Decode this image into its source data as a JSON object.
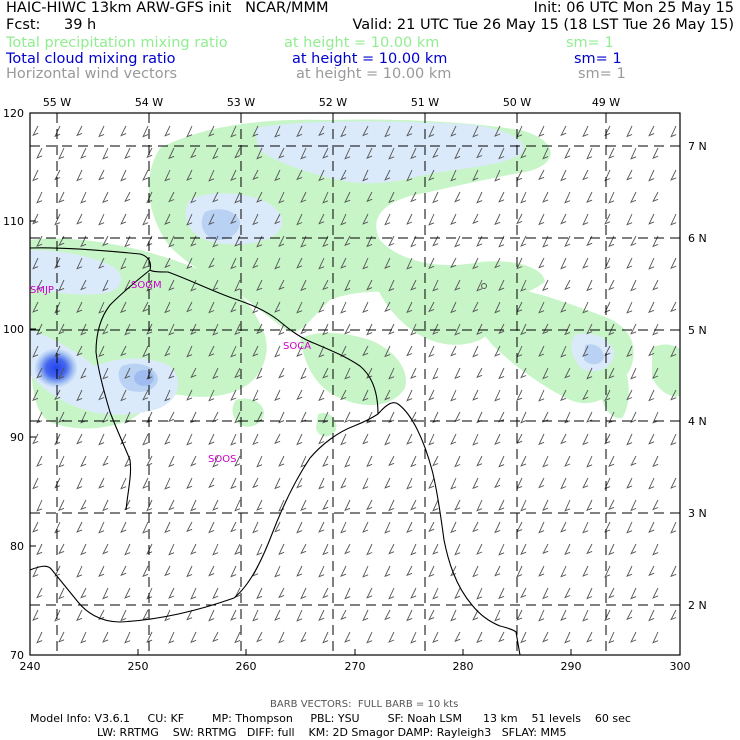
{
  "header": {
    "title": "HAIC-HIWC 13km ARW-GFS init   NCAR/MMM",
    "init": "Init: 06 UTC Mon 25 May 15",
    "fcst_label": "Fcst:",
    "fcst_value": "39 h",
    "valid": "Valid: 21 UTC Tue 26 May 15 (18 LST Tue 26 May 15)",
    "fields": [
      {
        "name": "Total precipitation mixing ratio",
        "height": "at height = 10.00 km",
        "sm": "sm= 1",
        "color": "#90ee90"
      },
      {
        "name": "Total cloud mixing ratio",
        "height": "at height = 10.00 km",
        "sm": "sm= 1",
        "color": "#0000cc"
      },
      {
        "name": "Horizontal wind vectors",
        "height": "at height = 10.00 km",
        "sm": "sm= 1",
        "color": "#999999"
      }
    ]
  },
  "map": {
    "top_labels": [
      "55 W",
      "54 W",
      "53 W",
      "52 W",
      "51 W",
      "50 W",
      "49 W"
    ],
    "right_labels": [
      "7 N",
      "6 N",
      "5 N",
      "4 N",
      "3 N",
      "2 N"
    ],
    "left_labels": [
      "120",
      "110",
      "100",
      "90",
      "80",
      "70"
    ],
    "bottom_labels": [
      "240",
      "250",
      "260",
      "270",
      "280",
      "290",
      "300"
    ],
    "stations": [
      "SMJP",
      "SOGM",
      "SOCA",
      "SOOS"
    ],
    "colors": {
      "precip": "#c8f5c8",
      "cloud_light": "#dbeafb",
      "cloud_mid": "#b9d2f3",
      "cloud_dark": "#3355ee",
      "station": "#cc00cc",
      "barb": "#444444"
    }
  },
  "footer": {
    "barb_note": "BARB VECTORS:  FULL BARB = 10 kts",
    "model_info": "Model Info: V3.6.1     CU: KF        MP: Thompson     PBL: YSU        SF: Noah LSM      13 km    51 levels    60 sec",
    "model_info2": "LW: RRTMG    SW: RRTMG   DIFF: full    KM: 2D Smagor DAMP: Rayleigh3   SFLAY: MM5"
  }
}
